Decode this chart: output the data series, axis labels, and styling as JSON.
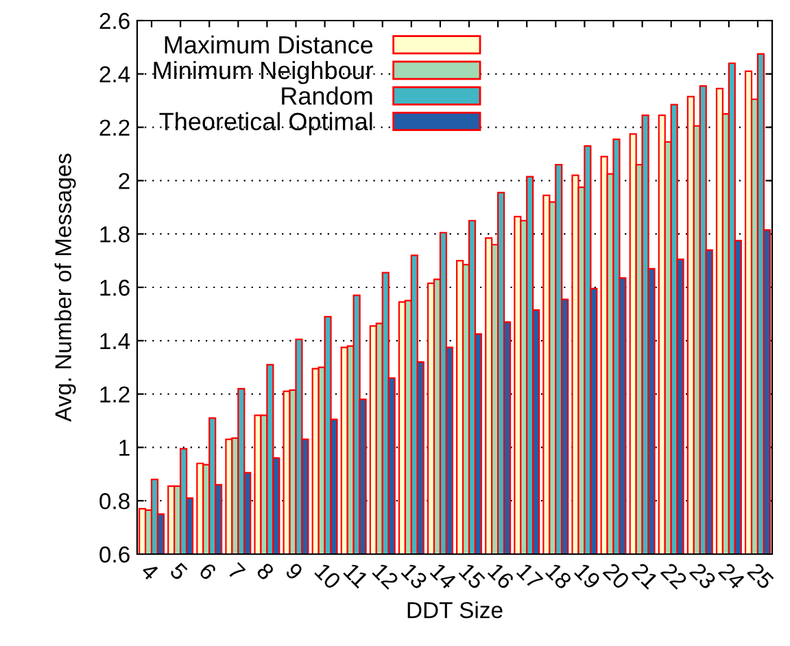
{
  "chart_data": {
    "type": "bar",
    "xlabel": "DDT Size",
    "ylabel": "Avg. Number of Messages",
    "categories": [
      "4",
      "5",
      "6",
      "7",
      "8",
      "9",
      "10",
      "11",
      "12",
      "13",
      "14",
      "15",
      "16",
      "17",
      "18",
      "19",
      "20",
      "21",
      "22",
      "23",
      "24",
      "25"
    ],
    "series": [
      {
        "name": "Maximum Distance",
        "color": "#ffffcc",
        "values": [
          0.77,
          0.855,
          0.94,
          1.03,
          1.12,
          1.21,
          1.295,
          1.375,
          1.455,
          1.545,
          1.615,
          1.7,
          1.785,
          1.865,
          1.945,
          2.02,
          2.09,
          2.175,
          2.245,
          2.315,
          2.345,
          2.41
        ]
      },
      {
        "name": "Minimum Neighbour",
        "color": "#a1dab4",
        "values": [
          0.765,
          0.855,
          0.935,
          1.035,
          1.12,
          1.215,
          1.3,
          1.38,
          1.465,
          1.55,
          1.63,
          1.685,
          1.76,
          1.85,
          1.92,
          1.975,
          2.025,
          2.06,
          2.145,
          2.205,
          2.25,
          2.305
        ]
      },
      {
        "name": "Random",
        "color": "#41b6c4",
        "values": [
          0.88,
          0.995,
          1.11,
          1.22,
          1.31,
          1.405,
          1.49,
          1.57,
          1.655,
          1.72,
          1.805,
          1.85,
          1.955,
          2.015,
          2.06,
          2.13,
          2.155,
          2.245,
          2.285,
          2.355,
          2.44,
          2.475
        ]
      },
      {
        "name": "Theoretical Optimal",
        "color": "#225ea8",
        "values": [
          0.75,
          0.81,
          0.86,
          0.905,
          0.96,
          1.03,
          1.105,
          1.18,
          1.26,
          1.32,
          1.375,
          1.425,
          1.47,
          1.515,
          1.555,
          1.595,
          1.635,
          1.67,
          1.705,
          1.74,
          1.775,
          1.815
        ]
      }
    ],
    "ylim": [
      0.6,
      2.6
    ],
    "yticks": [
      0.6,
      0.8,
      1,
      1.2,
      1.4,
      1.6,
      1.8,
      2,
      2.2,
      2.4,
      2.6
    ],
    "grid": "y",
    "legend": "top left"
  }
}
